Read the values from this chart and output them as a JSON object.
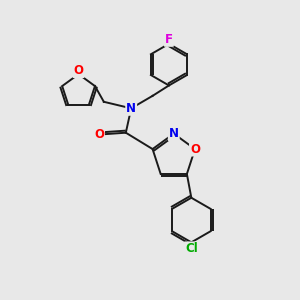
{
  "bg_color": "#e8e8e8",
  "bond_color": "#1a1a1a",
  "atom_colors": {
    "O": "#ff0000",
    "N": "#0000ee",
    "F": "#dd00dd",
    "Cl": "#00aa00",
    "C": "#1a1a1a"
  },
  "lw": 1.4,
  "dbo": 0.07,
  "fs": 8.5
}
